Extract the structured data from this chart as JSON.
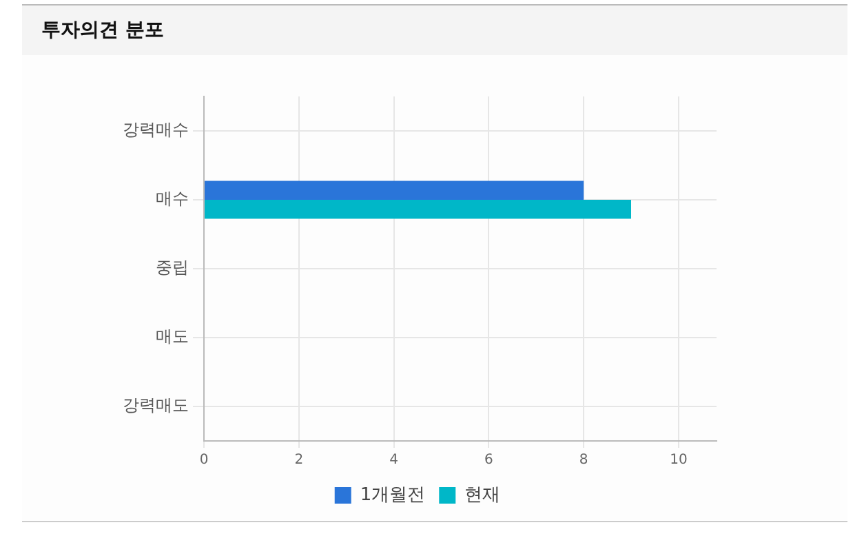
{
  "chart_data": {
    "type": "bar",
    "title": "투자의견 분포",
    "orientation": "horizontal",
    "categories": [
      "강력매수",
      "매수",
      "중립",
      "매도",
      "강력매도"
    ],
    "series": [
      {
        "name": "1개월전",
        "color": "#2a75d9",
        "values": [
          0,
          8,
          0,
          0,
          0
        ]
      },
      {
        "name": "현재",
        "color": "#00b7c8",
        "values": [
          0,
          9,
          0,
          0,
          0
        ]
      }
    ],
    "xlim": [
      0,
      10.8
    ],
    "xticks": [
      0,
      2,
      4,
      6,
      8,
      10
    ],
    "grid": true,
    "legend": "bottom"
  }
}
